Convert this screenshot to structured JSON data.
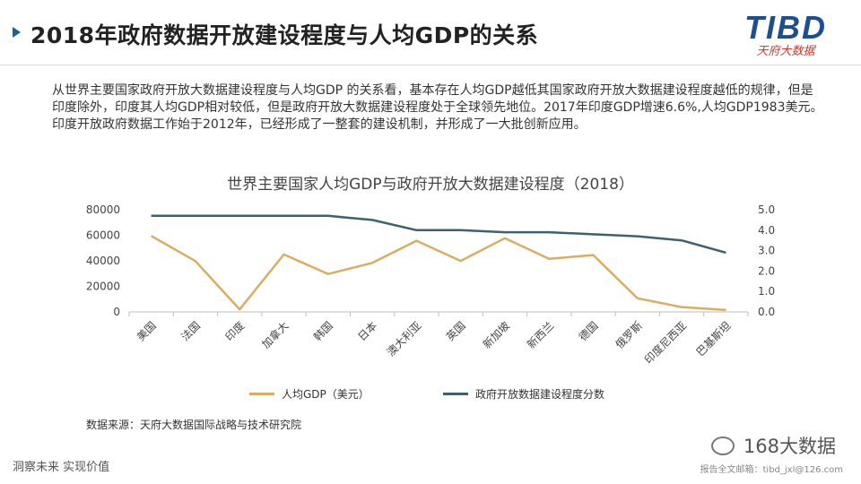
{
  "header": {
    "title": "2018年政府数据开放建设程度与人均GDP的关系"
  },
  "logo": {
    "main": "TIBD",
    "sub": "天府大数据"
  },
  "intro": "从世界主要国家政府开放大数据建设程度与人均GDP 的关系看，基本存在人均GDP越低其国家政府开放大数据建设程度越低的规律，但是印度除外，印度其人均GDP相对较低，但是政府开放大数据建设程度处于全球领先地位。2017年印度GDP增速6.6%,人均GDP1983美元。印度开放政府数据工作始于2012年，已经形成了一整套的建设机制，并形成了一大批创新应用。",
  "chart_data": {
    "type": "line",
    "title": "世界主要国家人均GDP与政府开放大数据建设程度（2018）",
    "categories": [
      "美国",
      "法国",
      "印度",
      "加拿大",
      "韩国",
      "日本",
      "澳大利亚",
      "英国",
      "新加坡",
      "新西兰",
      "德国",
      "俄罗斯",
      "印度尼西亚",
      "巴基斯坦"
    ],
    "y_left": {
      "ylim": [
        0,
        80000
      ],
      "ticks": [
        0,
        20000,
        40000,
        60000,
        80000
      ],
      "tick_labels": [
        "0",
        "20000",
        "40000",
        "60000",
        "80000"
      ]
    },
    "y_right": {
      "ylim": [
        0,
        5
      ],
      "ticks": [
        0,
        1,
        2,
        3,
        4,
        5
      ],
      "tick_labels": [
        "0.0",
        "1.0",
        "2.0",
        "3.0",
        "4.0",
        "5.0"
      ]
    },
    "series": [
      {
        "name": "人均GDP（美元）",
        "axis": "left",
        "color": "#d9ad62",
        "values": [
          59500,
          39800,
          1983,
          45000,
          29700,
          38400,
          55700,
          39900,
          57700,
          41600,
          44500,
          10700,
          3800,
          1500
        ]
      },
      {
        "name": "政府开放数据建设程度分数",
        "axis": "right",
        "color": "#3d6170",
        "values": [
          4.7,
          4.7,
          4.7,
          4.7,
          4.7,
          4.5,
          4.0,
          4.0,
          3.9,
          3.9,
          3.8,
          3.7,
          3.5,
          2.9
        ]
      }
    ],
    "grid": false,
    "legend_position": "bottom"
  },
  "source": "数据来源：天府大数据国际战略与技术研究院",
  "footer": {
    "left": "洞察未来 实现价值",
    "wechat": "168大数据",
    "email": "报告全文邮箱：tibd_jxl@126.com"
  }
}
